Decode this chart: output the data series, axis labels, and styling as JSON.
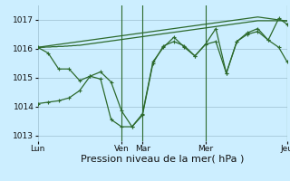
{
  "background_color": "#cceeff",
  "grid_color": "#aaccdd",
  "line_color": "#2d6a2d",
  "xlabel": "Pression niveau de la mer( hPa )",
  "xlabel_fontsize": 8,
  "ylim": [
    1012.8,
    1017.5
  ],
  "yticks": [
    1013,
    1014,
    1015,
    1016,
    1017
  ],
  "xtick_labels": [
    "Lun",
    "Ven",
    "Mar",
    "Mer",
    "Jeu"
  ],
  "xtick_positions": [
    0,
    40,
    50,
    80,
    119
  ],
  "total_points": 120,
  "smooth1_y": [
    1016.05,
    1016.06,
    1016.07,
    1016.08,
    1016.09,
    1016.1,
    1016.11,
    1016.12,
    1016.13,
    1016.14,
    1016.15,
    1016.16,
    1016.17,
    1016.18,
    1016.19,
    1016.2,
    1016.21,
    1016.22,
    1016.23,
    1016.24,
    1016.25,
    1016.26,
    1016.27,
    1016.28,
    1016.29,
    1016.3,
    1016.31,
    1016.32,
    1016.33,
    1016.34,
    1016.35,
    1016.36,
    1016.37,
    1016.38,
    1016.39,
    1016.4,
    1016.41,
    1016.42,
    1016.43,
    1016.44,
    1016.45,
    1016.46,
    1016.47,
    1016.48,
    1016.49,
    1016.5,
    1016.51,
    1016.52,
    1016.53,
    1016.54,
    1016.55,
    1016.56,
    1016.57,
    1016.58,
    1016.59,
    1016.6,
    1016.61,
    1016.62,
    1016.63,
    1016.64,
    1016.65,
    1016.66,
    1016.67,
    1016.68,
    1016.69,
    1016.7,
    1016.71,
    1016.72,
    1016.73,
    1016.74,
    1016.75,
    1016.76,
    1016.77,
    1016.78,
    1016.79,
    1016.8,
    1016.81,
    1016.82,
    1016.83,
    1016.84,
    1016.85,
    1016.86,
    1016.87,
    1016.88,
    1016.89,
    1016.9,
    1016.91,
    1016.92,
    1016.93,
    1016.94,
    1016.95,
    1016.96,
    1016.97,
    1016.98,
    1016.99,
    1017.0,
    1017.01,
    1017.02,
    1017.03,
    1017.04,
    1017.05,
    1017.06,
    1017.07,
    1017.08,
    1017.09,
    1017.1,
    1017.09,
    1017.08,
    1017.07,
    1017.06,
    1017.05,
    1017.04,
    1017.03,
    1017.02,
    1017.01,
    1017.0,
    1016.99,
    1016.98,
    1016.97,
    1016.96
  ],
  "smooth2_y": [
    1016.05,
    1016.05,
    1016.05,
    1016.05,
    1016.06,
    1016.06,
    1016.06,
    1016.07,
    1016.07,
    1016.07,
    1016.08,
    1016.08,
    1016.08,
    1016.09,
    1016.09,
    1016.1,
    1016.1,
    1016.11,
    1016.11,
    1016.12,
    1016.12,
    1016.13,
    1016.14,
    1016.15,
    1016.16,
    1016.17,
    1016.18,
    1016.19,
    1016.2,
    1016.21,
    1016.22,
    1016.23,
    1016.24,
    1016.25,
    1016.26,
    1016.27,
    1016.28,
    1016.29,
    1016.3,
    1016.31,
    1016.32,
    1016.33,
    1016.34,
    1016.35,
    1016.36,
    1016.37,
    1016.38,
    1016.39,
    1016.4,
    1016.41,
    1016.42,
    1016.43,
    1016.44,
    1016.45,
    1016.46,
    1016.47,
    1016.48,
    1016.49,
    1016.5,
    1016.51,
    1016.52,
    1016.53,
    1016.54,
    1016.55,
    1016.56,
    1016.57,
    1016.58,
    1016.59,
    1016.6,
    1016.61,
    1016.62,
    1016.63,
    1016.64,
    1016.65,
    1016.66,
    1016.67,
    1016.68,
    1016.69,
    1016.7,
    1016.71,
    1016.72,
    1016.73,
    1016.74,
    1016.75,
    1016.76,
    1016.77,
    1016.78,
    1016.79,
    1016.8,
    1016.81,
    1016.82,
    1016.83,
    1016.84,
    1016.85,
    1016.86,
    1016.87,
    1016.88,
    1016.89,
    1016.9,
    1016.91,
    1016.92,
    1016.93,
    1016.94,
    1016.95,
    1016.96,
    1016.97,
    1016.97,
    1016.97,
    1016.97,
    1016.97,
    1016.97,
    1016.97,
    1016.97,
    1016.97,
    1016.97,
    1016.97,
    1016.97,
    1016.97,
    1016.97,
    1016.97
  ],
  "noisy1_x": [
    0,
    5,
    10,
    15,
    20,
    25,
    30,
    35,
    40,
    45,
    50,
    55,
    60,
    65,
    70,
    75,
    80,
    85,
    90,
    95,
    100,
    105,
    110,
    115,
    119
  ],
  "noisy1_y": [
    1016.05,
    1015.85,
    1015.3,
    1015.3,
    1014.9,
    1015.05,
    1015.2,
    1014.85,
    1013.85,
    1013.3,
    1013.7,
    1015.5,
    1016.1,
    1016.25,
    1016.1,
    1015.75,
    1016.15,
    1016.7,
    1015.15,
    1016.25,
    1016.55,
    1016.7,
    1016.3,
    1016.05,
    1015.55
  ],
  "noisy2_x": [
    0,
    5,
    10,
    15,
    20,
    25,
    30,
    35,
    40,
    45,
    50,
    55,
    60,
    65,
    70,
    75,
    80,
    85,
    90,
    95,
    100,
    105,
    110,
    115,
    119
  ],
  "noisy2_y": [
    1014.1,
    1014.15,
    1014.2,
    1014.3,
    1014.55,
    1015.05,
    1014.95,
    1013.55,
    1013.3,
    1013.3,
    1013.75,
    1015.55,
    1016.05,
    1016.4,
    1016.05,
    1015.75,
    1016.15,
    1016.25,
    1015.15,
    1016.25,
    1016.5,
    1016.6,
    1016.3,
    1017.05,
    1016.85
  ],
  "vline_positions": [
    40,
    50,
    80,
    119
  ],
  "vline_color": "#2d6a2d"
}
